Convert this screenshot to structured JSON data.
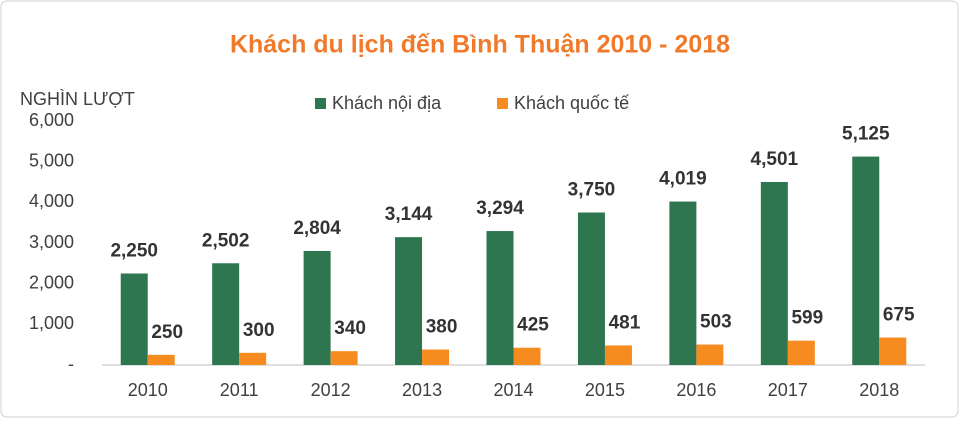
{
  "chart_data": {
    "type": "bar",
    "title": "Khách du lịch đến Bình Thuận 2010 - 2018",
    "y_label": "NGHÌN LƯỢT",
    "categories": [
      "2010",
      "2011",
      "2012",
      "2013",
      "2014",
      "2015",
      "2016",
      "2017",
      "2018"
    ],
    "series": [
      {
        "name": "Khách nội địa",
        "color": "#2e7650",
        "values": [
          2250,
          2502,
          2804,
          3144,
          3294,
          3750,
          4019,
          4501,
          5125
        ],
        "value_labels": [
          "2,250",
          "2,502",
          "2,804",
          "3,144",
          "3,294",
          "3,750",
          "4,019",
          "4,501",
          "5,125"
        ]
      },
      {
        "name": "Khách quốc tế",
        "color": "#f68b1f",
        "values": [
          250,
          300,
          340,
          380,
          425,
          481,
          503,
          599,
          675
        ]
      }
    ],
    "ylim": [
      0,
      6000
    ],
    "yticks": [
      {
        "value": 0,
        "label": "-"
      },
      {
        "value": 1000,
        "label": "1,000"
      },
      {
        "value": 2000,
        "label": "2,000"
      },
      {
        "value": 3000,
        "label": "3,000"
      },
      {
        "value": 4000,
        "label": "4,000"
      },
      {
        "value": 5000,
        "label": "5,000"
      },
      {
        "value": 6000,
        "label": "6,000"
      }
    ],
    "grid": false,
    "legend": "top"
  }
}
